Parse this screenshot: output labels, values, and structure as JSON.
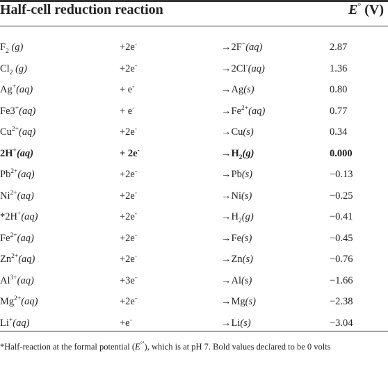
{
  "header": {
    "col1": "Half-cell reduction reaction",
    "col4_symbol": "E",
    "col4_sup": "°",
    "col4_unit": " (V)"
  },
  "rows": [
    {
      "oxidant": "F",
      "ox_sub": "2",
      "state": " (g)",
      "electrons": "+2e",
      "e_sup": "-",
      "product": "→2F",
      "prod_sup": "−",
      "prod_state": "(aq)",
      "potential": "2.87"
    },
    {
      "oxidant": "Cl",
      "ox_sub": "2",
      "state": " (g)",
      "electrons": "+2e",
      "e_sup": "-",
      "product": "→2Cl",
      "prod_sup": "-",
      "prod_state": "(aq)",
      "potential": "1.36"
    },
    {
      "oxidant": "Ag",
      "ox_sup": "+",
      "state": "(aq)",
      "electrons": "+ e",
      "e_sup": "-",
      "product": "→Ag",
      "prod_state": "(s)",
      "potential": "0.80"
    },
    {
      "oxidant": "Fe3",
      "ox_sup": "+",
      "state": "(aq)",
      "electrons": "+ e",
      "e_sup": "-",
      "product": "→Fe",
      "prod_sup": "2+",
      "prod_state": "(aq)",
      "potential": "0.77"
    },
    {
      "oxidant": "Cu",
      "ox_sup": "2+",
      "state": "(aq)",
      "electrons": "+2e",
      "e_sup": "-",
      "product": "→Cu",
      "prod_state": "(s)",
      "potential": "0.34"
    },
    {
      "oxidant": "2H",
      "ox_sup": "+",
      "state": "(aq)",
      "electrons": "+ 2e",
      "e_sup": "-",
      "product": "→H",
      "prod_sub": "2",
      "prod_state": "(g)",
      "potential": "0.000",
      "bold": true
    },
    {
      "oxidant": "Pb",
      "ox_sup": "2+",
      "state": "(aq)",
      "electrons": "+2e",
      "e_sup": "-",
      "product": "→Pb",
      "prod_state": "(s)",
      "potential": "−0.13"
    },
    {
      "oxidant": "Ni",
      "ox_sup": "2+",
      "state": "(aq)",
      "electrons": "+2e",
      "e_sup": "-",
      "product": "→Ni",
      "prod_state": "(s)",
      "potential": "−0.25"
    },
    {
      "oxidant": "*2H",
      "ox_sup": "+",
      "state": "(aq)",
      "electrons": "+2e",
      "e_sup": "-",
      "product": "→H",
      "prod_sub": "2",
      "prod_state": "(g)",
      "potential": "−0.41"
    },
    {
      "oxidant": "Fe",
      "ox_sup": "2+",
      "state": "(aq)",
      "electrons": "+2e",
      "e_sup": "-",
      "product": "→Fe",
      "prod_state": "(s)",
      "potential": "−0.45"
    },
    {
      "oxidant": "Zn",
      "ox_sup": "2+",
      "state": "(aq)",
      "electrons": "+2e",
      "e_sup": "-",
      "product": "→Zn",
      "prod_state": "(s)",
      "potential": "−0.76"
    },
    {
      "oxidant": "Al",
      "ox_sup": "3+",
      "state": "(aq)",
      "electrons": "+3e",
      "e_sup": "-",
      "product": "→Al",
      "prod_state": "(s)",
      "potential": "−1.66"
    },
    {
      "oxidant": "Mg",
      "ox_sup": "2+",
      "state": "(aq)",
      "electrons": "+2e",
      "e_sup": "-",
      "product": "→Mg",
      "prod_state": "(s)",
      "potential": "−2.38"
    },
    {
      "oxidant": "Li",
      "ox_sup": "+",
      "state": "(aq)",
      "electrons": "+e",
      "e_sup": "-",
      "product": "→Li",
      "prod_state": "(s)",
      "potential": "−3.04"
    }
  ],
  "footnote": {
    "before": "*Half-reaction at the formal potential (",
    "symbol": "E",
    "symbol_sup": "°′",
    "after": "), which is at pH 7. Bold values declared to be 0 volts"
  }
}
